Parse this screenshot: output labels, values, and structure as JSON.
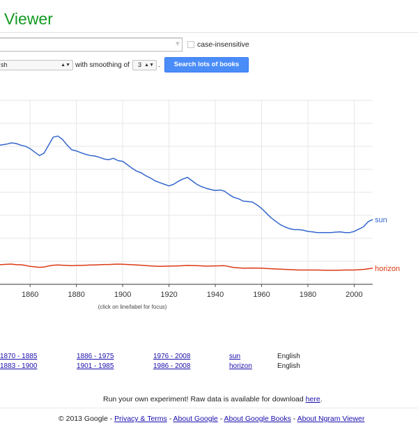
{
  "header": {
    "title": "Viewer"
  },
  "query": {
    "value": "",
    "case_insensitive_label": "case-insensitive",
    "case_insensitive_checked": false
  },
  "controls": {
    "corpus_value": "sh",
    "smoothing_label": "with smoothing of",
    "smoothing_value": "3",
    "period": ".",
    "search_button": "Search lots of books"
  },
  "chart_data": {
    "type": "line",
    "title": "",
    "xlabel": "",
    "ylabel": "",
    "x_ticks": [
      "1860",
      "1880",
      "1900",
      "1920",
      "1940",
      "1960",
      "1980",
      "2000"
    ],
    "xlim": [
      1847,
      2008
    ],
    "ylim": [
      0,
      8
    ],
    "grid": true,
    "legend": "inline at line ends",
    "note": "(click on line/label for focus)",
    "series": [
      {
        "name": "sun",
        "color": "#3366cc",
        "x": [
          1847,
          1850,
          1852,
          1854,
          1856,
          1858,
          1860,
          1862,
          1864,
          1866,
          1868,
          1870,
          1872,
          1874,
          1876,
          1878,
          1880,
          1882,
          1884,
          1886,
          1888,
          1890,
          1892,
          1894,
          1896,
          1898,
          1900,
          1902,
          1904,
          1906,
          1908,
          1910,
          1912,
          1914,
          1916,
          1918,
          1920,
          1922,
          1924,
          1926,
          1928,
          1930,
          1932,
          1934,
          1936,
          1938,
          1940,
          1942,
          1944,
          1946,
          1948,
          1950,
          1952,
          1954,
          1956,
          1958,
          1960,
          1962,
          1964,
          1966,
          1968,
          1970,
          1972,
          1974,
          1976,
          1978,
          1980,
          1982,
          1984,
          1986,
          1988,
          1990,
          1992,
          1994,
          1996,
          1998,
          2000,
          2002,
          2004,
          2006,
          2008
        ],
        "values": [
          6.05,
          6.1,
          6.15,
          6.12,
          6.05,
          6.0,
          5.9,
          5.75,
          5.6,
          5.7,
          6.05,
          6.4,
          6.45,
          6.3,
          6.05,
          5.85,
          5.8,
          5.72,
          5.65,
          5.6,
          5.58,
          5.52,
          5.45,
          5.42,
          5.48,
          5.38,
          5.35,
          5.2,
          5.05,
          4.92,
          4.85,
          4.72,
          4.62,
          4.5,
          4.42,
          4.35,
          4.28,
          4.35,
          4.48,
          4.58,
          4.65,
          4.5,
          4.35,
          4.25,
          4.18,
          4.12,
          4.08,
          4.1,
          4.05,
          3.9,
          3.78,
          3.72,
          3.62,
          3.6,
          3.58,
          3.45,
          3.3,
          3.1,
          2.9,
          2.75,
          2.6,
          2.5,
          2.42,
          2.38,
          2.38,
          2.35,
          2.3,
          2.28,
          2.25,
          2.25,
          2.25,
          2.25,
          2.27,
          2.28,
          2.25,
          2.25,
          2.3,
          2.4,
          2.5,
          2.72,
          2.82
        ]
      },
      {
        "name": "horizon",
        "color": "#dc3912",
        "x": [
          1847,
          1850,
          1852,
          1854,
          1856,
          1858,
          1860,
          1862,
          1864,
          1866,
          1868,
          1870,
          1872,
          1874,
          1876,
          1878,
          1880,
          1882,
          1884,
          1886,
          1888,
          1890,
          1892,
          1894,
          1896,
          1898,
          1900,
          1904,
          1908,
          1912,
          1916,
          1920,
          1924,
          1928,
          1932,
          1936,
          1940,
          1944,
          1948,
          1952,
          1956,
          1960,
          1964,
          1968,
          1972,
          1976,
          1980,
          1984,
          1988,
          1992,
          1996,
          2000,
          2004,
          2008
        ],
        "values": [
          0.85,
          0.87,
          0.88,
          0.85,
          0.85,
          0.82,
          0.78,
          0.76,
          0.74,
          0.75,
          0.8,
          0.83,
          0.84,
          0.83,
          0.82,
          0.81,
          0.82,
          0.82,
          0.83,
          0.84,
          0.84,
          0.85,
          0.86,
          0.86,
          0.87,
          0.88,
          0.87,
          0.85,
          0.83,
          0.8,
          0.78,
          0.79,
          0.8,
          0.82,
          0.81,
          0.79,
          0.8,
          0.81,
          0.73,
          0.7,
          0.71,
          0.7,
          0.68,
          0.66,
          0.64,
          0.62,
          0.62,
          0.62,
          0.61,
          0.61,
          0.62,
          0.62,
          0.65,
          0.7
        ]
      }
    ]
  },
  "links": [
    {
      "range": "1870 - 1885",
      "range2": "1886 - 1975",
      "range3": "1976 - 2008",
      "ngram": "sun",
      "lang": "English"
    },
    {
      "range": "1883 - 1900",
      "range2": "1901 - 1985",
      "range3": "1986 - 2008",
      "ngram": "horizon",
      "lang": "English"
    }
  ],
  "experiment": {
    "text": "Run your own experiment! Raw data is available for download",
    "link": "here",
    "period": "."
  },
  "footer": {
    "copyright": "© 2013 Google -",
    "privacy": "Privacy & Terms",
    "sep": "-",
    "about_google": "About Google",
    "about_books": "About Google Books",
    "about_ngram": "About Ngram Viewer"
  }
}
